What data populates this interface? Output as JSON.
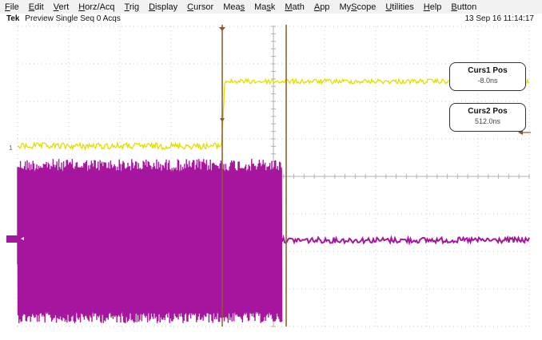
{
  "menu": [
    {
      "label": "File",
      "u": 0
    },
    {
      "label": "Edit",
      "u": 0
    },
    {
      "label": "Vert",
      "u": 0
    },
    {
      "label": "Horz/Acq",
      "u": 0
    },
    {
      "label": "Trig",
      "u": 0
    },
    {
      "label": "Display",
      "u": 0
    },
    {
      "label": "Cursor",
      "u": 0
    },
    {
      "label": "Meas",
      "u": 3
    },
    {
      "label": "Mask",
      "u": 2
    },
    {
      "label": "Math",
      "u": 0
    },
    {
      "label": "App",
      "u": 0
    },
    {
      "label": "MyScope",
      "u": 2
    },
    {
      "label": "Utilities",
      "u": 0
    },
    {
      "label": "Help",
      "u": 0
    },
    {
      "label": "Button",
      "u": 0
    }
  ],
  "status": {
    "brand": "Tek",
    "mode": "Preview",
    "acq": "Single Seq",
    "acq_count": "0 Acqs",
    "datetime": "13 Sep 16 11:14:17"
  },
  "channel1": {
    "label": "1",
    "color": "#e0e000"
  },
  "channel2": {
    "color": "#a6169e"
  },
  "cursors": {
    "curs1": {
      "title": "Curs1 Pos",
      "value": "-8.0ns"
    },
    "curs2": {
      "title": "Curs2 Pos",
      "value": "512.0ns"
    },
    "color": "#8b5a2b"
  },
  "graticule": {
    "divisions_x": 10,
    "divisions_y": 8
  }
}
